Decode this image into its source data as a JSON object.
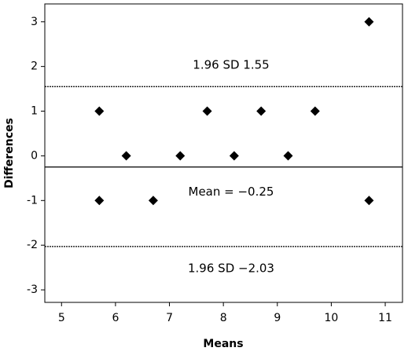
{
  "chart_data": {
    "type": "scatter",
    "x_label": "Means",
    "y_label": "Differences",
    "x": [
      5.7,
      5.7,
      6.2,
      6.7,
      7.2,
      7.7,
      8.2,
      8.7,
      9.2,
      9.7,
      10.7,
      10.7
    ],
    "y": [
      1,
      -1,
      0,
      -1,
      0,
      1,
      0,
      1,
      0,
      1,
      3,
      -1
    ],
    "color": "#000000",
    "xlim": [
      4.69,
      11.32
    ],
    "xticks": [
      5,
      6,
      7,
      8,
      9,
      10,
      11
    ],
    "ylim": [
      -3.28,
      3.4
    ],
    "yticks": [
      -3,
      -2,
      -1,
      0,
      1,
      2,
      3
    ],
    "reference_lines": [
      {
        "value": 1.55,
        "label": "1.96  SD  1.55",
        "style": "dotted"
      },
      {
        "value": -0.25,
        "label": "Mean  =  −0.25",
        "style": "solid"
      },
      {
        "value": -2.03,
        "label": "1.96  SD  −2.03",
        "style": "dotted"
      }
    ]
  }
}
